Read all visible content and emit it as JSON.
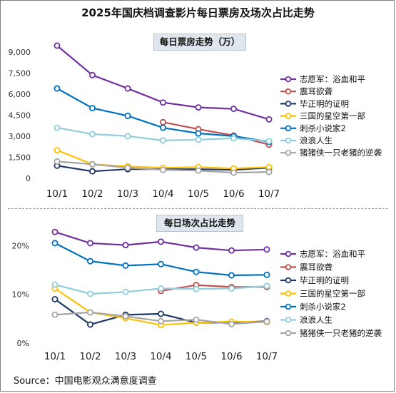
{
  "title": "2025年国庆档调查影片每日票房及场次占比走势",
  "source": "Source：中国电影观众满意度调查",
  "chart_data": [
    {
      "type": "line",
      "title": "每日票房走势（万）",
      "categories": [
        "10/1",
        "10/2",
        "10/3",
        "10/4",
        "10/5",
        "10/6",
        "10/7"
      ],
      "ylim": [
        0,
        9500
      ],
      "yticks": [
        "0",
        "1,500",
        "3,000",
        "4,500",
        "6,000",
        "7,500",
        "9,000"
      ],
      "ytick_values": [
        0,
        1500,
        3000,
        4500,
        6000,
        7500,
        9000
      ],
      "legend_position": "right",
      "series": [
        {
          "name": "志愿军：浴血和平",
          "color": "#7030a0",
          "values": [
            9450,
            7350,
            6400,
            5400,
            5050,
            4950,
            4200
          ]
        },
        {
          "name": "震耳欲聋",
          "color": "#c0504d",
          "values": [
            null,
            null,
            null,
            4000,
            3500,
            3050,
            2400
          ]
        },
        {
          "name": "毕正明的证明",
          "color": "#1f3864",
          "values": [
            900,
            500,
            650,
            650,
            650,
            600,
            750
          ]
        },
        {
          "name": "三国的星空第一部",
          "color": "#ffc000",
          "values": [
            2000,
            1000,
            850,
            750,
            800,
            700,
            800
          ]
        },
        {
          "name": "刺杀小说家2",
          "color": "#0070c0",
          "values": [
            6400,
            5000,
            4450,
            3600,
            3200,
            3000,
            2600
          ]
        },
        {
          "name": "浪浪人生",
          "color": "#92cddc",
          "values": [
            3600,
            3150,
            3000,
            2700,
            2750,
            2850,
            2650
          ]
        },
        {
          "name": "猪猪侠一只老猪的逆袭",
          "color": "#a5a5a5",
          "values": [
            1200,
            1000,
            750,
            600,
            550,
            400,
            450
          ]
        }
      ]
    },
    {
      "type": "line",
      "title": "每日场次占比走势",
      "categories": [
        "10/1",
        "10/2",
        "10/3",
        "10/4",
        "10/5",
        "10/6",
        "10/7"
      ],
      "ylim": [
        0,
        24
      ],
      "yticks": [
        "0%",
        "10%",
        "20%"
      ],
      "ytick_values": [
        0,
        10,
        20
      ],
      "legend_position": "right",
      "series": [
        {
          "name": "志愿军：浴血和平",
          "color": "#7030a0",
          "values": [
            22.8,
            20.5,
            20.1,
            20.8,
            19.6,
            19.0,
            19.2
          ]
        },
        {
          "name": "震耳欲聋",
          "color": "#c0504d",
          "values": [
            null,
            null,
            null,
            10.7,
            11.9,
            11.5,
            11.5
          ]
        },
        {
          "name": "毕正明的证明",
          "color": "#1f3864",
          "values": [
            9.0,
            3.8,
            5.8,
            6.0,
            4.2,
            4.2,
            4.5
          ]
        },
        {
          "name": "三国的星空第一部",
          "color": "#ffc000",
          "values": [
            11.2,
            6.3,
            5.1,
            3.7,
            4.2,
            4.4,
            4.3
          ]
        },
        {
          "name": "刺杀小说家2",
          "color": "#0070c0",
          "values": [
            20.5,
            16.8,
            15.9,
            16.2,
            14.6,
            13.9,
            14.0
          ]
        },
        {
          "name": "浪浪人生",
          "color": "#92cddc",
          "values": [
            12.0,
            10.1,
            10.5,
            11.2,
            11.1,
            11.2,
            11.7
          ]
        },
        {
          "name": "猪猪侠一只老猪的逆袭",
          "color": "#a5a5a5",
          "values": [
            5.8,
            6.3,
            5.5,
            4.5,
            4.8,
            3.9,
            4.4
          ]
        }
      ]
    }
  ]
}
